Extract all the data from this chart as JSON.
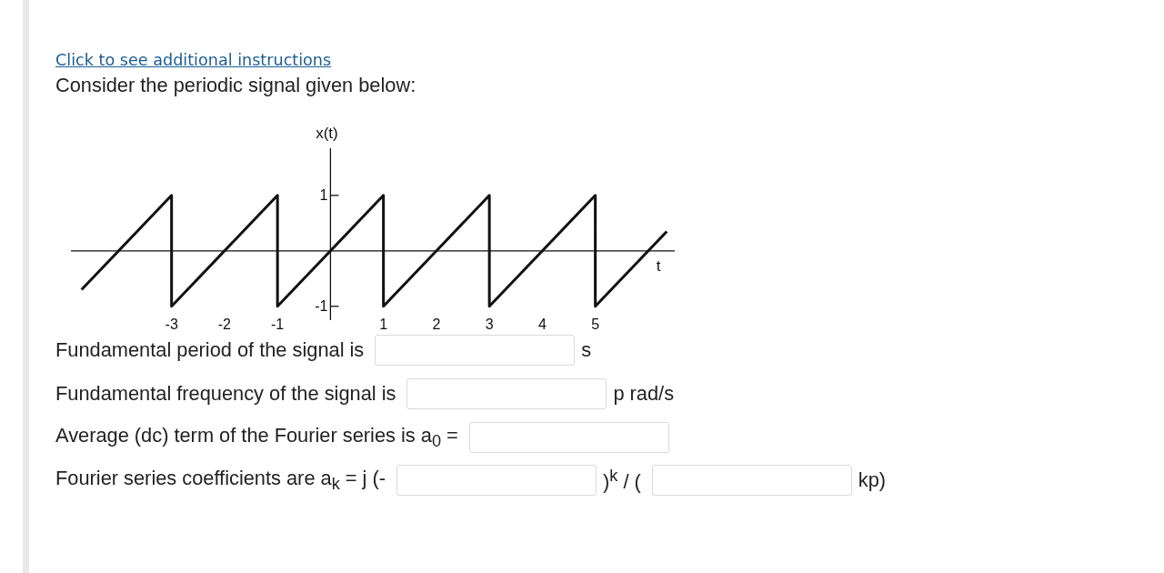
{
  "chart_data": {
    "type": "line",
    "title": "Consider the periodic signal given below:",
    "xlabel": "t",
    "ylabel": "x(t)",
    "x": [
      -4.7,
      -3,
      -3,
      -1,
      -1,
      1,
      1,
      3,
      3,
      5,
      5,
      6.35
    ],
    "values": [
      -0.7,
      1,
      -1,
      1,
      -1,
      1,
      -1,
      1,
      -1,
      1,
      -1,
      0.35
    ],
    "color": "#111111",
    "marker": "none",
    "line_style": "solid",
    "xlim": [
      -4.9,
      6.5
    ],
    "ylim": [
      -1.25,
      1.85
    ],
    "xticks": [
      -3,
      -2,
      -1,
      1,
      2,
      3,
      4,
      5
    ],
    "yticks": [
      -1,
      1
    ],
    "annotations": [
      "Click to see additional instructions",
      "Fundamental period of the signal is",
      "s",
      "Fundamental frequency of the signal is",
      "p rad/s",
      "Average (dc) term of the Fourier series is a$_{0}$ =",
      "Fourier series coefficients are a$_{k}$ = j (-",
      ")$^{k}$ / (",
      "kp)"
    ]
  }
}
